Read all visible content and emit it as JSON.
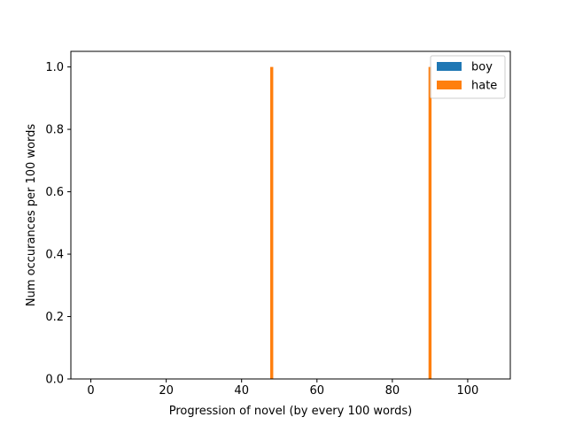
{
  "chart_data": {
    "type": "bar",
    "title": "",
    "xlabel": "Progression of novel (by every 100 words)",
    "ylabel": "Num occurances per 100 words",
    "xlim": [
      -5.3,
      111.3
    ],
    "ylim": [
      0,
      1.05
    ],
    "xticks": [
      0,
      20,
      40,
      60,
      80,
      100
    ],
    "yticks": [
      0.0,
      0.2,
      0.4,
      0.6,
      0.8,
      1.0
    ],
    "xtick_labels": [
      "0",
      "20",
      "40",
      "60",
      "80",
      "100"
    ],
    "ytick_labels": [
      "0.0",
      "0.2",
      "0.4",
      "0.6",
      "0.8",
      "1.0"
    ],
    "bar_width": 0.8,
    "legend_position": "top-right",
    "grid": false,
    "series": [
      {
        "name": "boy",
        "color": "#1f77b4",
        "points": []
      },
      {
        "name": "hate",
        "color": "#ff7f0e",
        "points": [
          {
            "x": 48,
            "y": 1
          },
          {
            "x": 90,
            "y": 1
          }
        ]
      }
    ]
  }
}
